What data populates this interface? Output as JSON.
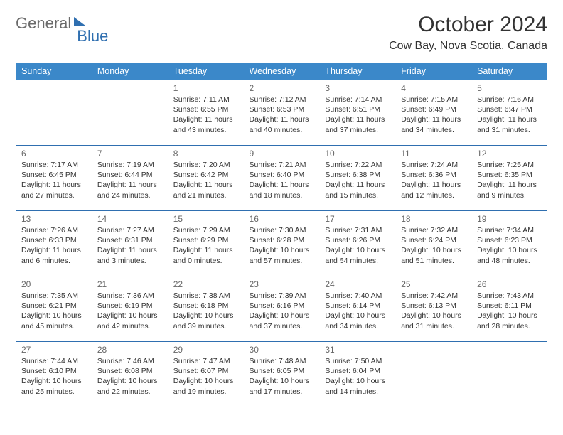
{
  "logo": {
    "part1": "General",
    "part2": "Blue"
  },
  "title": "October 2024",
  "location": "Cow Bay, Nova Scotia, Canada",
  "colors": {
    "header_bg": "#3b88c9",
    "header_text": "#ffffff",
    "rule": "#2f6fb0",
    "logo_gray": "#6b6b6b",
    "logo_blue": "#2f6fb0",
    "body_text": "#333333",
    "daynum": "#666666"
  },
  "typography": {
    "title_fontsize": 30,
    "location_fontsize": 16,
    "dayheader_fontsize": 12.5,
    "daynum_fontsize": 12,
    "body_fontsize": 10.5
  },
  "day_headers": [
    "Sunday",
    "Monday",
    "Tuesday",
    "Wednesday",
    "Thursday",
    "Friday",
    "Saturday"
  ],
  "weeks": [
    [
      {
        "num": "",
        "lines": []
      },
      {
        "num": "",
        "lines": []
      },
      {
        "num": "1",
        "lines": [
          "Sunrise: 7:11 AM",
          "Sunset: 6:55 PM",
          "Daylight: 11 hours and 43 minutes."
        ]
      },
      {
        "num": "2",
        "lines": [
          "Sunrise: 7:12 AM",
          "Sunset: 6:53 PM",
          "Daylight: 11 hours and 40 minutes."
        ]
      },
      {
        "num": "3",
        "lines": [
          "Sunrise: 7:14 AM",
          "Sunset: 6:51 PM",
          "Daylight: 11 hours and 37 minutes."
        ]
      },
      {
        "num": "4",
        "lines": [
          "Sunrise: 7:15 AM",
          "Sunset: 6:49 PM",
          "Daylight: 11 hours and 34 minutes."
        ]
      },
      {
        "num": "5",
        "lines": [
          "Sunrise: 7:16 AM",
          "Sunset: 6:47 PM",
          "Daylight: 11 hours and 31 minutes."
        ]
      }
    ],
    [
      {
        "num": "6",
        "lines": [
          "Sunrise: 7:17 AM",
          "Sunset: 6:45 PM",
          "Daylight: 11 hours and 27 minutes."
        ]
      },
      {
        "num": "7",
        "lines": [
          "Sunrise: 7:19 AM",
          "Sunset: 6:44 PM",
          "Daylight: 11 hours and 24 minutes."
        ]
      },
      {
        "num": "8",
        "lines": [
          "Sunrise: 7:20 AM",
          "Sunset: 6:42 PM",
          "Daylight: 11 hours and 21 minutes."
        ]
      },
      {
        "num": "9",
        "lines": [
          "Sunrise: 7:21 AM",
          "Sunset: 6:40 PM",
          "Daylight: 11 hours and 18 minutes."
        ]
      },
      {
        "num": "10",
        "lines": [
          "Sunrise: 7:22 AM",
          "Sunset: 6:38 PM",
          "Daylight: 11 hours and 15 minutes."
        ]
      },
      {
        "num": "11",
        "lines": [
          "Sunrise: 7:24 AM",
          "Sunset: 6:36 PM",
          "Daylight: 11 hours and 12 minutes."
        ]
      },
      {
        "num": "12",
        "lines": [
          "Sunrise: 7:25 AM",
          "Sunset: 6:35 PM",
          "Daylight: 11 hours and 9 minutes."
        ]
      }
    ],
    [
      {
        "num": "13",
        "lines": [
          "Sunrise: 7:26 AM",
          "Sunset: 6:33 PM",
          "Daylight: 11 hours and 6 minutes."
        ]
      },
      {
        "num": "14",
        "lines": [
          "Sunrise: 7:27 AM",
          "Sunset: 6:31 PM",
          "Daylight: 11 hours and 3 minutes."
        ]
      },
      {
        "num": "15",
        "lines": [
          "Sunrise: 7:29 AM",
          "Sunset: 6:29 PM",
          "Daylight: 11 hours and 0 minutes."
        ]
      },
      {
        "num": "16",
        "lines": [
          "Sunrise: 7:30 AM",
          "Sunset: 6:28 PM",
          "Daylight: 10 hours and 57 minutes."
        ]
      },
      {
        "num": "17",
        "lines": [
          "Sunrise: 7:31 AM",
          "Sunset: 6:26 PM",
          "Daylight: 10 hours and 54 minutes."
        ]
      },
      {
        "num": "18",
        "lines": [
          "Sunrise: 7:32 AM",
          "Sunset: 6:24 PM",
          "Daylight: 10 hours and 51 minutes."
        ]
      },
      {
        "num": "19",
        "lines": [
          "Sunrise: 7:34 AM",
          "Sunset: 6:23 PM",
          "Daylight: 10 hours and 48 minutes."
        ]
      }
    ],
    [
      {
        "num": "20",
        "lines": [
          "Sunrise: 7:35 AM",
          "Sunset: 6:21 PM",
          "Daylight: 10 hours and 45 minutes."
        ]
      },
      {
        "num": "21",
        "lines": [
          "Sunrise: 7:36 AM",
          "Sunset: 6:19 PM",
          "Daylight: 10 hours and 42 minutes."
        ]
      },
      {
        "num": "22",
        "lines": [
          "Sunrise: 7:38 AM",
          "Sunset: 6:18 PM",
          "Daylight: 10 hours and 39 minutes."
        ]
      },
      {
        "num": "23",
        "lines": [
          "Sunrise: 7:39 AM",
          "Sunset: 6:16 PM",
          "Daylight: 10 hours and 37 minutes."
        ]
      },
      {
        "num": "24",
        "lines": [
          "Sunrise: 7:40 AM",
          "Sunset: 6:14 PM",
          "Daylight: 10 hours and 34 minutes."
        ]
      },
      {
        "num": "25",
        "lines": [
          "Sunrise: 7:42 AM",
          "Sunset: 6:13 PM",
          "Daylight: 10 hours and 31 minutes."
        ]
      },
      {
        "num": "26",
        "lines": [
          "Sunrise: 7:43 AM",
          "Sunset: 6:11 PM",
          "Daylight: 10 hours and 28 minutes."
        ]
      }
    ],
    [
      {
        "num": "27",
        "lines": [
          "Sunrise: 7:44 AM",
          "Sunset: 6:10 PM",
          "Daylight: 10 hours and 25 minutes."
        ]
      },
      {
        "num": "28",
        "lines": [
          "Sunrise: 7:46 AM",
          "Sunset: 6:08 PM",
          "Daylight: 10 hours and 22 minutes."
        ]
      },
      {
        "num": "29",
        "lines": [
          "Sunrise: 7:47 AM",
          "Sunset: 6:07 PM",
          "Daylight: 10 hours and 19 minutes."
        ]
      },
      {
        "num": "30",
        "lines": [
          "Sunrise: 7:48 AM",
          "Sunset: 6:05 PM",
          "Daylight: 10 hours and 17 minutes."
        ]
      },
      {
        "num": "31",
        "lines": [
          "Sunrise: 7:50 AM",
          "Sunset: 6:04 PM",
          "Daylight: 10 hours and 14 minutes."
        ]
      },
      {
        "num": "",
        "lines": []
      },
      {
        "num": "",
        "lines": []
      }
    ]
  ]
}
